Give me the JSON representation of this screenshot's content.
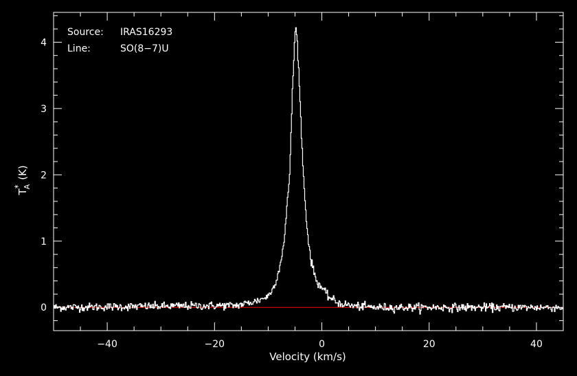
{
  "chart_data": {
    "type": "line",
    "xlabel": "Velocity (km/s)",
    "ylabel": {
      "base": "T",
      "sub": "A",
      "sup": "*",
      "unit": "(K)"
    },
    "xlim": [
      -50,
      45
    ],
    "ylim": [
      -0.35,
      4.45
    ],
    "x_ticks": [
      -40,
      -20,
      0,
      20,
      40
    ],
    "x_tick_labels": [
      "−40",
      "−20",
      "0",
      "20",
      "40"
    ],
    "y_ticks": [
      0,
      1,
      2,
      3,
      4
    ],
    "y_tick_labels": [
      "0",
      "1",
      "2",
      "3",
      "4"
    ],
    "grid": false,
    "annotations": [
      {
        "label": "Source:",
        "value": "IRAS16293"
      },
      {
        "label": "Line:",
        "value": "SO(8−7)U"
      }
    ],
    "baseline": {
      "y": 0,
      "color": "#ff0000"
    },
    "series": [
      {
        "style": "histogram",
        "color": "#ffffff",
        "profile_anchors": {
          "x": [
            -50,
            -16,
            -14,
            -12,
            -10,
            -9,
            -8,
            -7,
            -6,
            -5.5,
            -5,
            -4.8,
            -4.5,
            -4,
            -3.5,
            -3,
            -2.5,
            -2,
            -1,
            0,
            1,
            2,
            3,
            4,
            6,
            10,
            45
          ],
          "y": [
            0,
            0.03,
            0.06,
            0.1,
            0.17,
            0.3,
            0.55,
            1.0,
            2.0,
            3.2,
            4.15,
            4.2,
            3.95,
            3.0,
            2.1,
            1.45,
            1.0,
            0.7,
            0.4,
            0.3,
            0.18,
            0.12,
            0.07,
            0.05,
            0.02,
            0,
            0
          ]
        },
        "noise_rms": 0.03,
        "channel_width_km_s": 0.13
      }
    ]
  },
  "colors": {
    "background": "#000000",
    "foreground": "#ffffff",
    "baseline": "#ff0000"
  }
}
